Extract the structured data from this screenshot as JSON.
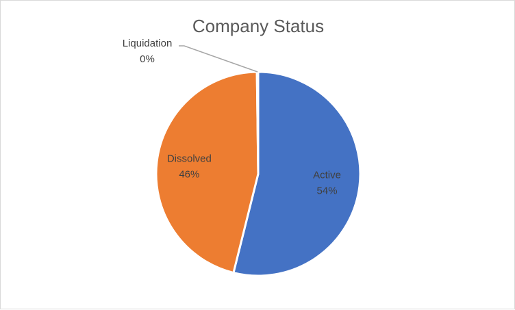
{
  "chart_data": {
    "type": "pie",
    "title": "Company Status",
    "slices": [
      {
        "label": "Active",
        "percent_label": "54%",
        "value": 54,
        "color": "#4472C4"
      },
      {
        "label": "Dissolved",
        "percent_label": "46%",
        "value": 46,
        "color": "#ED7D31"
      },
      {
        "label": "Liquidation",
        "percent_label": "0%",
        "value": 0.2,
        "color": "#A5A5A5"
      }
    ],
    "legend": "none",
    "data_labels": "category-and-percent"
  }
}
